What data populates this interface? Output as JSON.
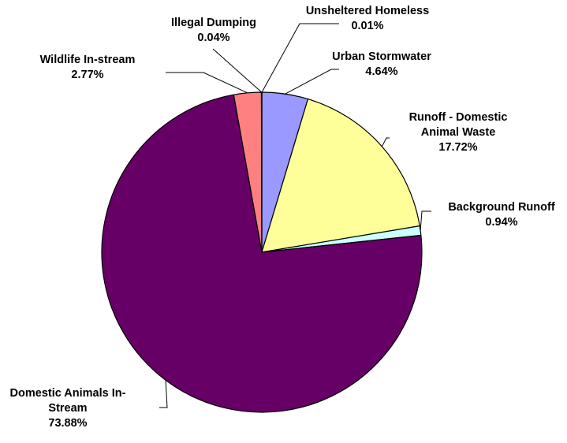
{
  "chart_data": {
    "type": "pie",
    "title": "",
    "legend": "none",
    "slices": [
      {
        "label_lines": [
          "Unsheltered Homeless"
        ],
        "value": 0.01,
        "value_label": "0.01%",
        "color": "#FFFFCC"
      },
      {
        "label_lines": [
          "Urban Stormwater"
        ],
        "value": 4.64,
        "value_label": "4.64%",
        "color": "#9999FF"
      },
      {
        "label_lines": [
          "Runoff - Domestic",
          "Animal Waste"
        ],
        "value": 17.72,
        "value_label": "17.72%",
        "color": "#FFFF99"
      },
      {
        "label_lines": [
          "Background Runoff"
        ],
        "value": 0.94,
        "value_label": "0.94%",
        "color": "#CCFFFF"
      },
      {
        "label_lines": [
          "Domestic Animals In-",
          "Stream"
        ],
        "value": 73.88,
        "value_label": "73.88%",
        "color": "#660066"
      },
      {
        "label_lines": [
          "Wildlife In-stream"
        ],
        "value": 2.77,
        "value_label": "2.77%",
        "color": "#FF8080"
      },
      {
        "label_lines": [
          "Illegal Dumping"
        ],
        "value": 0.04,
        "value_label": "0.04%",
        "color": "#000080"
      }
    ]
  }
}
